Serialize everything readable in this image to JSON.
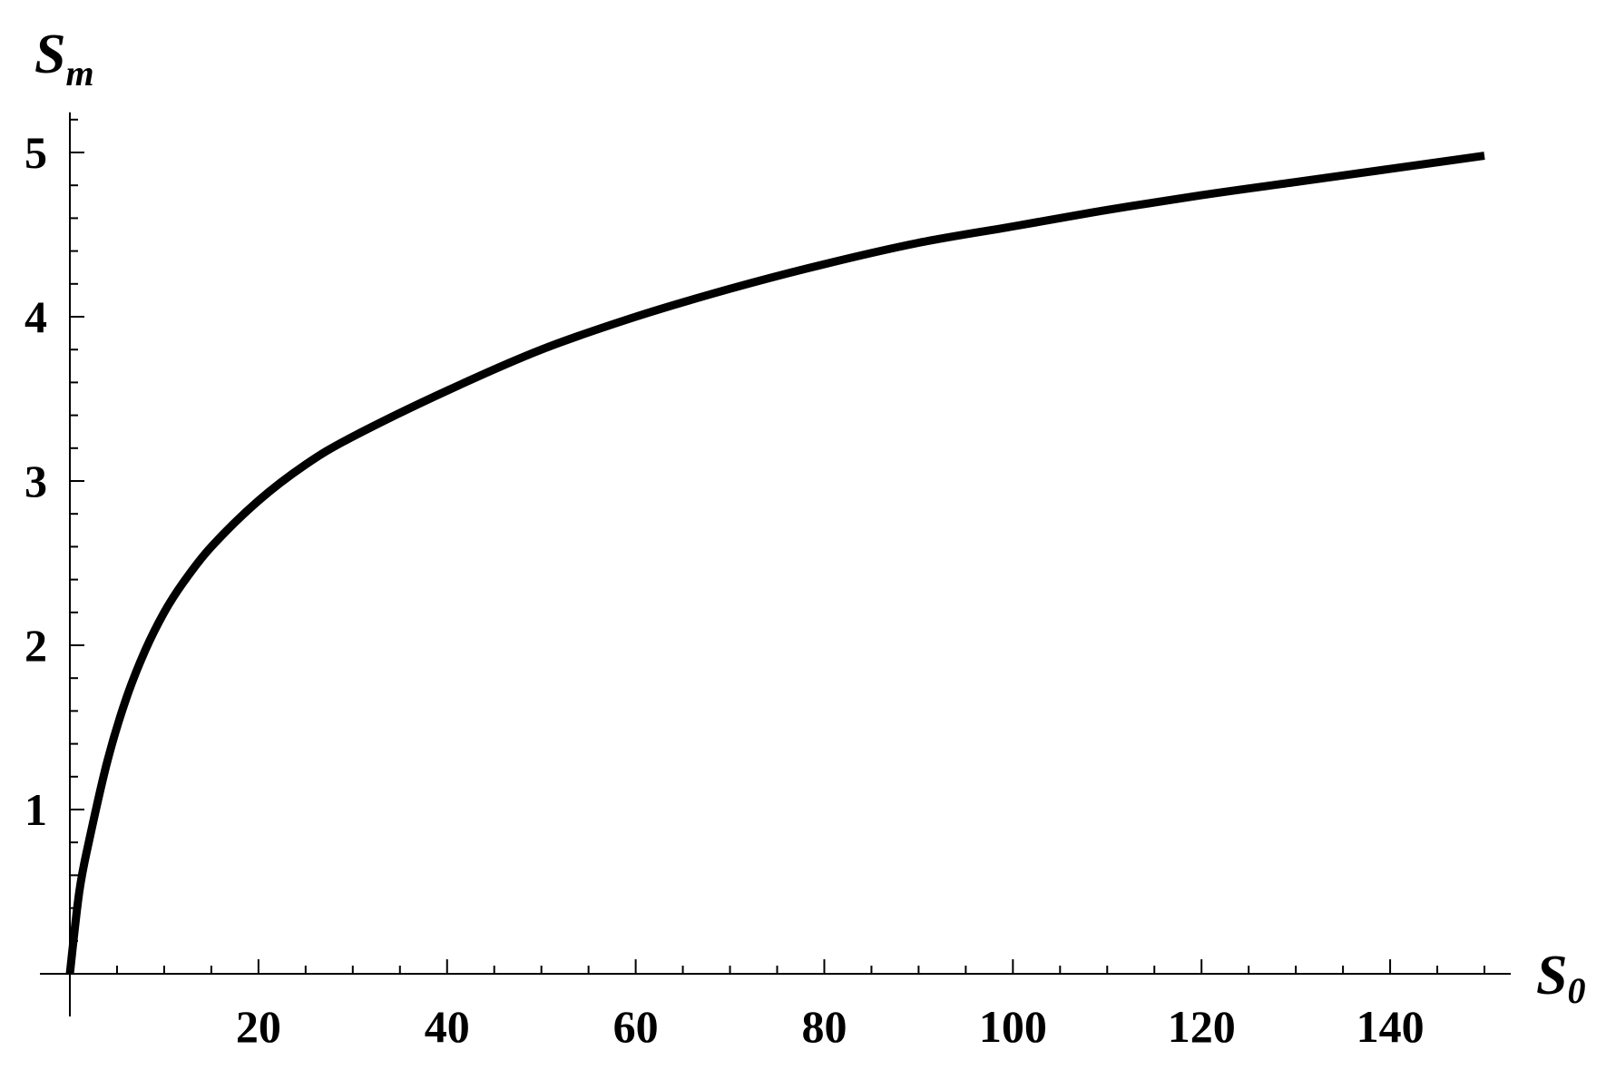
{
  "chart_data": {
    "type": "line",
    "xlabel": {
      "base": "S",
      "sub": "0"
    },
    "ylabel": {
      "base": "S",
      "sub": "m"
    },
    "xlim": [
      0,
      150
    ],
    "ylim": [
      0,
      5.2
    ],
    "xticks": [
      20,
      40,
      60,
      80,
      100,
      120,
      140
    ],
    "xtick_labels": [
      "20",
      "40",
      "60",
      "80",
      "100",
      "120",
      "140"
    ],
    "yticks": [
      1,
      2,
      3,
      4,
      5
    ],
    "ytick_labels": [
      "1",
      "2",
      "3",
      "4",
      "5"
    ],
    "x_minor_step": 5,
    "y_minor_step": 0.2,
    "grid": false,
    "line_color": "#000000",
    "series": [
      {
        "x": [
          0,
          1,
          2,
          4,
          6,
          8,
          10,
          12,
          15,
          20,
          25,
          30,
          40,
          50,
          60,
          70,
          80,
          90,
          100,
          110,
          120,
          130,
          140,
          150
        ],
        "y": [
          0,
          0.5,
          0.8,
          1.3,
          1.68,
          1.97,
          2.2,
          2.38,
          2.6,
          2.88,
          3.1,
          3.27,
          3.55,
          3.8,
          4.0,
          4.17,
          4.32,
          4.45,
          4.55,
          4.65,
          4.74,
          4.82,
          4.9,
          4.98
        ]
      }
    ]
  }
}
